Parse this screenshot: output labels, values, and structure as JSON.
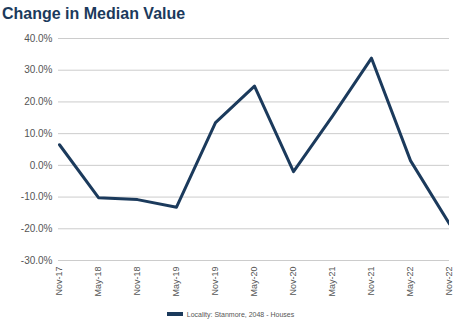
{
  "chart_data": {
    "type": "line",
    "title": "Change in Median Value",
    "categories": [
      "Nov-17",
      "May-18",
      "Nov-18",
      "May-19",
      "Nov-19",
      "May-20",
      "Nov-20",
      "May-21",
      "Nov-21",
      "May-22",
      "Nov-22"
    ],
    "series": [
      {
        "name": "Locality: Stanmore, 2048 - Houses",
        "color": "#1b3a5c",
        "values": [
          6.5,
          -10.2,
          -10.8,
          -13.2,
          13.5,
          25.0,
          -2.0,
          15.5,
          33.8,
          1.5,
          -18.5
        ]
      }
    ],
    "ylim": [
      -30,
      40
    ],
    "yticks": [
      {
        "value": -30,
        "label": "-30.0%"
      },
      {
        "value": -20,
        "label": "-20.0%"
      },
      {
        "value": -10,
        "label": "-10.0%"
      },
      {
        "value": 0,
        "label": "0.0%"
      },
      {
        "value": 10,
        "label": "10.0%"
      },
      {
        "value": 20,
        "label": "20.0%"
      },
      {
        "value": 30,
        "label": "30.0%"
      },
      {
        "value": 40,
        "label": "40.0%"
      }
    ],
    "grid": true,
    "legend": "bottom"
  }
}
